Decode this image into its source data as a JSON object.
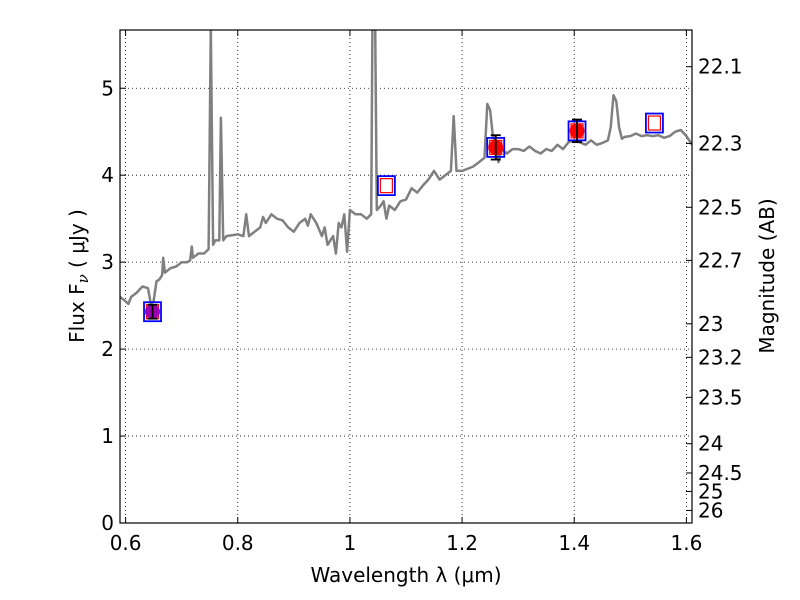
{
  "chart_data": {
    "type": "line",
    "xlabel": "Wavelength  λ (μm)",
    "ylabel": "Flux  F",
    "ylabel_sub": "ν",
    "ylabel_unit": "  ( μJy )",
    "y2label": "Magnitude (AB)",
    "xlim": [
      0.59,
      1.61
    ],
    "ylim": [
      0,
      5.67
    ],
    "x_ticks": [
      0.6,
      0.8,
      1.0,
      1.2,
      1.4,
      1.6
    ],
    "x_tick_labels": [
      "0.6",
      "0.8",
      "1",
      "1.2",
      "1.4",
      "1.6"
    ],
    "y_ticks": [
      0,
      1,
      2,
      3,
      4,
      5
    ],
    "y_tick_labels": [
      "0",
      "1",
      "2",
      "3",
      "4",
      "5"
    ],
    "y2_ticks": [
      22.1,
      22.3,
      22.5,
      22.7,
      23,
      23.2,
      23.5,
      24,
      24.5,
      25,
      26
    ],
    "y2_tick_labels": [
      "22.1",
      "22.3",
      "22.5",
      "22.7",
      "23",
      "23.2",
      "23.5",
      "24",
      "24.5",
      "25",
      "26"
    ],
    "grid": true,
    "colors": {
      "spectrum": "#808080",
      "model_box": "#0000ff",
      "model_inner": "#ff0000",
      "observed": "#ff0000",
      "observed_low": "#9b00b0",
      "errorbar": "#000000"
    },
    "series": [
      {
        "style": "spectrum",
        "points": [
          [
            0.59,
            2.6
          ],
          [
            0.6,
            2.55
          ],
          [
            0.605,
            2.52
          ],
          [
            0.61,
            2.6
          ],
          [
            0.62,
            2.65
          ],
          [
            0.63,
            2.72
          ],
          [
            0.64,
            2.7
          ],
          [
            0.645,
            2.52
          ],
          [
            0.65,
            2.55
          ],
          [
            0.655,
            2.78
          ],
          [
            0.66,
            2.8
          ],
          [
            0.665,
            2.85
          ],
          [
            0.667,
            3.05
          ],
          [
            0.67,
            2.88
          ],
          [
            0.68,
            2.93
          ],
          [
            0.69,
            2.95
          ],
          [
            0.7,
            3.0
          ],
          [
            0.71,
            3.0
          ],
          [
            0.715,
            3.02
          ],
          [
            0.718,
            3.18
          ],
          [
            0.72,
            3.05
          ],
          [
            0.73,
            3.1
          ],
          [
            0.74,
            3.1
          ],
          [
            0.748,
            3.15
          ],
          [
            0.752,
            5.7
          ],
          [
            0.756,
            3.2
          ],
          [
            0.76,
            3.25
          ],
          [
            0.767,
            3.25
          ],
          [
            0.77,
            4.66
          ],
          [
            0.774,
            3.25
          ],
          [
            0.78,
            3.3
          ],
          [
            0.8,
            3.32
          ],
          [
            0.81,
            3.3
          ],
          [
            0.815,
            3.55
          ],
          [
            0.82,
            3.3
          ],
          [
            0.83,
            3.35
          ],
          [
            0.84,
            3.4
          ],
          [
            0.845,
            3.52
          ],
          [
            0.85,
            3.45
          ],
          [
            0.86,
            3.55
          ],
          [
            0.87,
            3.5
          ],
          [
            0.88,
            3.48
          ],
          [
            0.89,
            3.4
          ],
          [
            0.9,
            3.35
          ],
          [
            0.91,
            3.45
          ],
          [
            0.92,
            3.5
          ],
          [
            0.925,
            3.42
          ],
          [
            0.93,
            3.55
          ],
          [
            0.94,
            3.45
          ],
          [
            0.95,
            3.3
          ],
          [
            0.955,
            3.4
          ],
          [
            0.96,
            3.2
          ],
          [
            0.97,
            3.3
          ],
          [
            0.975,
            3.1
          ],
          [
            0.98,
            3.45
          ],
          [
            0.985,
            3.4
          ],
          [
            0.99,
            3.55
          ],
          [
            0.995,
            3.12
          ],
          [
            1.0,
            3.6
          ],
          [
            1.01,
            3.55
          ],
          [
            1.02,
            3.55
          ],
          [
            1.03,
            3.5
          ],
          [
            1.038,
            3.55
          ],
          [
            1.04,
            5.7
          ],
          [
            1.045,
            5.7
          ],
          [
            1.048,
            3.6
          ],
          [
            1.055,
            3.65
          ],
          [
            1.06,
            3.7
          ],
          [
            1.065,
            3.5
          ],
          [
            1.07,
            3.65
          ],
          [
            1.08,
            3.6
          ],
          [
            1.09,
            3.7
          ],
          [
            1.1,
            3.72
          ],
          [
            1.11,
            3.85
          ],
          [
            1.12,
            3.8
          ],
          [
            1.13,
            3.88
          ],
          [
            1.14,
            3.95
          ],
          [
            1.15,
            4.05
          ],
          [
            1.16,
            3.95
          ],
          [
            1.17,
            4.0
          ],
          [
            1.18,
            4.05
          ],
          [
            1.185,
            4.68
          ],
          [
            1.19,
            4.05
          ],
          [
            1.2,
            4.05
          ],
          [
            1.22,
            4.1
          ],
          [
            1.23,
            4.15
          ],
          [
            1.24,
            4.2
          ],
          [
            1.245,
            4.82
          ],
          [
            1.25,
            4.75
          ],
          [
            1.255,
            4.45
          ],
          [
            1.26,
            4.35
          ],
          [
            1.265,
            4.15
          ],
          [
            1.27,
            4.3
          ],
          [
            1.28,
            4.25
          ],
          [
            1.29,
            4.3
          ],
          [
            1.3,
            4.3
          ],
          [
            1.31,
            4.28
          ],
          [
            1.32,
            4.33
          ],
          [
            1.33,
            4.28
          ],
          [
            1.34,
            4.25
          ],
          [
            1.35,
            4.3
          ],
          [
            1.36,
            4.28
          ],
          [
            1.37,
            4.35
          ],
          [
            1.38,
            4.3
          ],
          [
            1.39,
            4.38
          ],
          [
            1.4,
            4.4
          ],
          [
            1.41,
            4.38
          ],
          [
            1.42,
            4.35
          ],
          [
            1.43,
            4.4
          ],
          [
            1.44,
            4.35
          ],
          [
            1.45,
            4.37
          ],
          [
            1.46,
            4.4
          ],
          [
            1.465,
            4.55
          ],
          [
            1.47,
            4.92
          ],
          [
            1.475,
            4.85
          ],
          [
            1.48,
            4.55
          ],
          [
            1.485,
            4.42
          ],
          [
            1.49,
            4.44
          ],
          [
            1.5,
            4.45
          ],
          [
            1.51,
            4.48
          ],
          [
            1.52,
            4.45
          ],
          [
            1.53,
            4.46
          ],
          [
            1.54,
            4.45
          ],
          [
            1.55,
            4.46
          ],
          [
            1.56,
            4.43
          ],
          [
            1.57,
            4.45
          ],
          [
            1.58,
            4.5
          ],
          [
            1.59,
            4.52
          ],
          [
            1.6,
            4.45
          ],
          [
            1.61,
            4.35
          ]
        ]
      },
      {
        "style": "model_photometry",
        "points": [
          [
            0.648,
            2.43
          ],
          [
            1.065,
            3.88
          ],
          [
            1.26,
            4.32
          ],
          [
            1.405,
            4.51
          ],
          [
            1.543,
            4.6
          ]
        ]
      },
      {
        "style": "observed_photometry",
        "points": [
          {
            "x": 0.648,
            "y": 2.43,
            "err": 0.08
          },
          {
            "x": 1.26,
            "y": 4.32,
            "err": 0.14
          },
          {
            "x": 1.405,
            "y": 4.51,
            "err": 0.13
          }
        ]
      }
    ]
  }
}
